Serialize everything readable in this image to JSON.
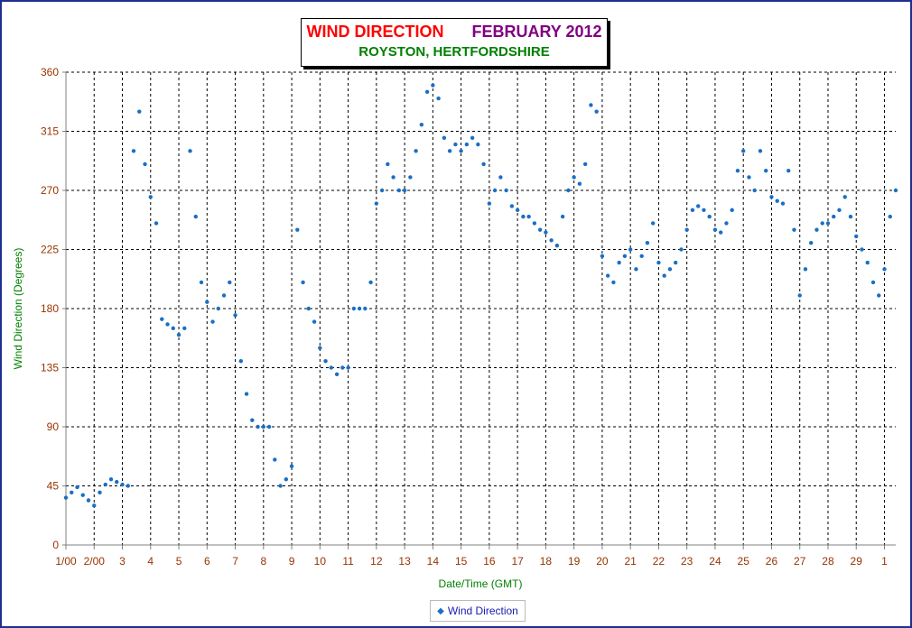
{
  "chart_data": {
    "type": "scatter",
    "title": "WIND DIRECTION",
    "title_period": "FEBRUARY 2012",
    "subtitle": "ROYSTON, HERTFORDSHIRE",
    "xlabel": "Date/Time (GMT)",
    "ylabel": "Wind Direction (Degrees)",
    "ylim": [
      0,
      360
    ],
    "yticks": [
      0,
      45,
      90,
      135,
      180,
      225,
      270,
      315,
      360
    ],
    "xlim": [
      1,
      30.4
    ],
    "xtick_labels": [
      "1/00",
      "2/00",
      "3",
      "4",
      "5",
      "6",
      "7",
      "8",
      "9",
      "10",
      "11",
      "12",
      "13",
      "14",
      "15",
      "16",
      "17",
      "18",
      "19",
      "20",
      "21",
      "22",
      "23",
      "24",
      "25",
      "26",
      "27",
      "28",
      "29",
      "1"
    ],
    "grid": true,
    "legend_position": "bottom",
    "series": [
      {
        "name": "Wind Direction",
        "color": "#1a6fc4",
        "points": [
          [
            1.0,
            36
          ],
          [
            1.2,
            40
          ],
          [
            1.4,
            44
          ],
          [
            1.6,
            38
          ],
          [
            1.8,
            34
          ],
          [
            2.0,
            30
          ],
          [
            2.2,
            40
          ],
          [
            2.4,
            46
          ],
          [
            2.6,
            50
          ],
          [
            2.8,
            48
          ],
          [
            3.0,
            46
          ],
          [
            3.2,
            45
          ],
          [
            3.4,
            300
          ],
          [
            3.6,
            330
          ],
          [
            3.8,
            290
          ],
          [
            4.0,
            265
          ],
          [
            4.2,
            245
          ],
          [
            4.4,
            172
          ],
          [
            4.6,
            168
          ],
          [
            4.8,
            165
          ],
          [
            5.0,
            160
          ],
          [
            5.2,
            165
          ],
          [
            5.4,
            300
          ],
          [
            5.6,
            250
          ],
          [
            5.8,
            200
          ],
          [
            6.0,
            185
          ],
          [
            6.2,
            170
          ],
          [
            6.4,
            180
          ],
          [
            6.6,
            190
          ],
          [
            6.8,
            200
          ],
          [
            7.0,
            175
          ],
          [
            7.2,
            140
          ],
          [
            7.4,
            115
          ],
          [
            7.6,
            95
          ],
          [
            7.8,
            90
          ],
          [
            8.0,
            90
          ],
          [
            8.2,
            90
          ],
          [
            8.4,
            65
          ],
          [
            8.6,
            45
          ],
          [
            8.8,
            50
          ],
          [
            9.0,
            60
          ],
          [
            9.2,
            240
          ],
          [
            9.4,
            200
          ],
          [
            9.6,
            180
          ],
          [
            9.8,
            170
          ],
          [
            10.0,
            150
          ],
          [
            10.2,
            140
          ],
          [
            10.4,
            135
          ],
          [
            10.6,
            130
          ],
          [
            10.8,
            135
          ],
          [
            11.0,
            135
          ],
          [
            11.2,
            180
          ],
          [
            11.4,
            180
          ],
          [
            11.6,
            180
          ],
          [
            11.8,
            200
          ],
          [
            12.0,
            260
          ],
          [
            12.2,
            270
          ],
          [
            12.4,
            290
          ],
          [
            12.6,
            280
          ],
          [
            12.8,
            270
          ],
          [
            13.0,
            270
          ],
          [
            13.2,
            280
          ],
          [
            13.4,
            300
          ],
          [
            13.6,
            320
          ],
          [
            13.8,
            345
          ],
          [
            14.0,
            350
          ],
          [
            14.2,
            340
          ],
          [
            14.4,
            310
          ],
          [
            14.6,
            300
          ],
          [
            14.8,
            305
          ],
          [
            15.0,
            300
          ],
          [
            15.2,
            305
          ],
          [
            15.4,
            310
          ],
          [
            15.6,
            305
          ],
          [
            15.8,
            290
          ],
          [
            16.0,
            260
          ],
          [
            16.2,
            270
          ],
          [
            16.4,
            280
          ],
          [
            16.6,
            270
          ],
          [
            16.8,
            258
          ],
          [
            17.0,
            255
          ],
          [
            17.2,
            250
          ],
          [
            17.4,
            250
          ],
          [
            17.6,
            245
          ],
          [
            17.8,
            240
          ],
          [
            18.0,
            238
          ],
          [
            18.2,
            232
          ],
          [
            18.4,
            228
          ],
          [
            18.6,
            250
          ],
          [
            18.8,
            270
          ],
          [
            19.0,
            280
          ],
          [
            19.2,
            275
          ],
          [
            19.4,
            290
          ],
          [
            19.6,
            335
          ],
          [
            19.8,
            330
          ],
          [
            20.0,
            220
          ],
          [
            20.2,
            205
          ],
          [
            20.4,
            200
          ],
          [
            20.6,
            215
          ],
          [
            20.8,
            220
          ],
          [
            21.0,
            225
          ],
          [
            21.2,
            210
          ],
          [
            21.4,
            220
          ],
          [
            21.6,
            230
          ],
          [
            21.8,
            245
          ],
          [
            22.0,
            215
          ],
          [
            22.2,
            205
          ],
          [
            22.4,
            210
          ],
          [
            22.6,
            215
          ],
          [
            22.8,
            225
          ],
          [
            23.0,
            240
          ],
          [
            23.2,
            255
          ],
          [
            23.4,
            258
          ],
          [
            23.6,
            255
          ],
          [
            23.8,
            250
          ],
          [
            24.0,
            240
          ],
          [
            24.2,
            238
          ],
          [
            24.4,
            245
          ],
          [
            24.6,
            255
          ],
          [
            24.8,
            285
          ],
          [
            25.0,
            300
          ],
          [
            25.2,
            280
          ],
          [
            25.4,
            270
          ],
          [
            25.6,
            300
          ],
          [
            25.8,
            285
          ],
          [
            26.0,
            265
          ],
          [
            26.2,
            262
          ],
          [
            26.4,
            260
          ],
          [
            26.6,
            285
          ],
          [
            26.8,
            240
          ],
          [
            27.0,
            190
          ],
          [
            27.2,
            210
          ],
          [
            27.4,
            230
          ],
          [
            27.6,
            240
          ],
          [
            27.8,
            245
          ],
          [
            28.0,
            245
          ],
          [
            28.2,
            250
          ],
          [
            28.4,
            255
          ],
          [
            28.6,
            265
          ],
          [
            28.8,
            250
          ],
          [
            29.0,
            235
          ],
          [
            29.2,
            225
          ],
          [
            29.4,
            215
          ],
          [
            29.6,
            200
          ],
          [
            29.8,
            190
          ],
          [
            30.0,
            210
          ],
          [
            30.2,
            250
          ],
          [
            30.4,
            270
          ]
        ]
      }
    ]
  }
}
